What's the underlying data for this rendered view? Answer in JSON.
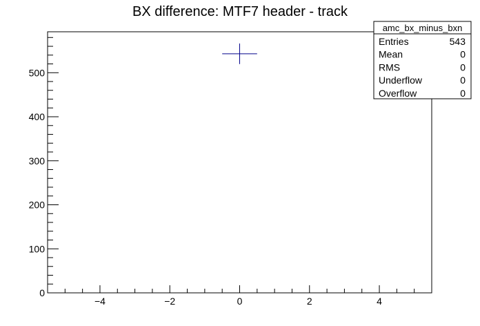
{
  "chart_data": {
    "type": "scatter",
    "title": "BX difference: MTF7 header - track",
    "xlabel": "",
    "ylabel": "",
    "xlim": [
      -5.5,
      5.5
    ],
    "ylim": [
      0,
      593
    ],
    "xticks": [
      -4,
      -2,
      0,
      2,
      4
    ],
    "xtick_labels": [
      "−4",
      "−2",
      "0",
      "2",
      "4"
    ],
    "yticks": [
      0,
      100,
      200,
      300,
      400,
      500
    ],
    "ytick_labels": [
      "0",
      "100",
      "200",
      "300",
      "400",
      "500"
    ],
    "grid": false,
    "points": [
      {
        "x": 0,
        "y": 543,
        "x_err": 0.5,
        "y_err": 23.3
      }
    ],
    "colors": {
      "marker": "#00008b",
      "axis": "#000000"
    },
    "stats_box": {
      "name": "amc_bx_minus_bxn",
      "placement": "top-right",
      "rows": [
        {
          "label": "Entries",
          "value": "543"
        },
        {
          "label": "Mean",
          "value": "0"
        },
        {
          "label": "RMS",
          "value": "0"
        },
        {
          "label": "Underflow",
          "value": "0"
        },
        {
          "label": "Overflow",
          "value": "0"
        }
      ]
    }
  }
}
